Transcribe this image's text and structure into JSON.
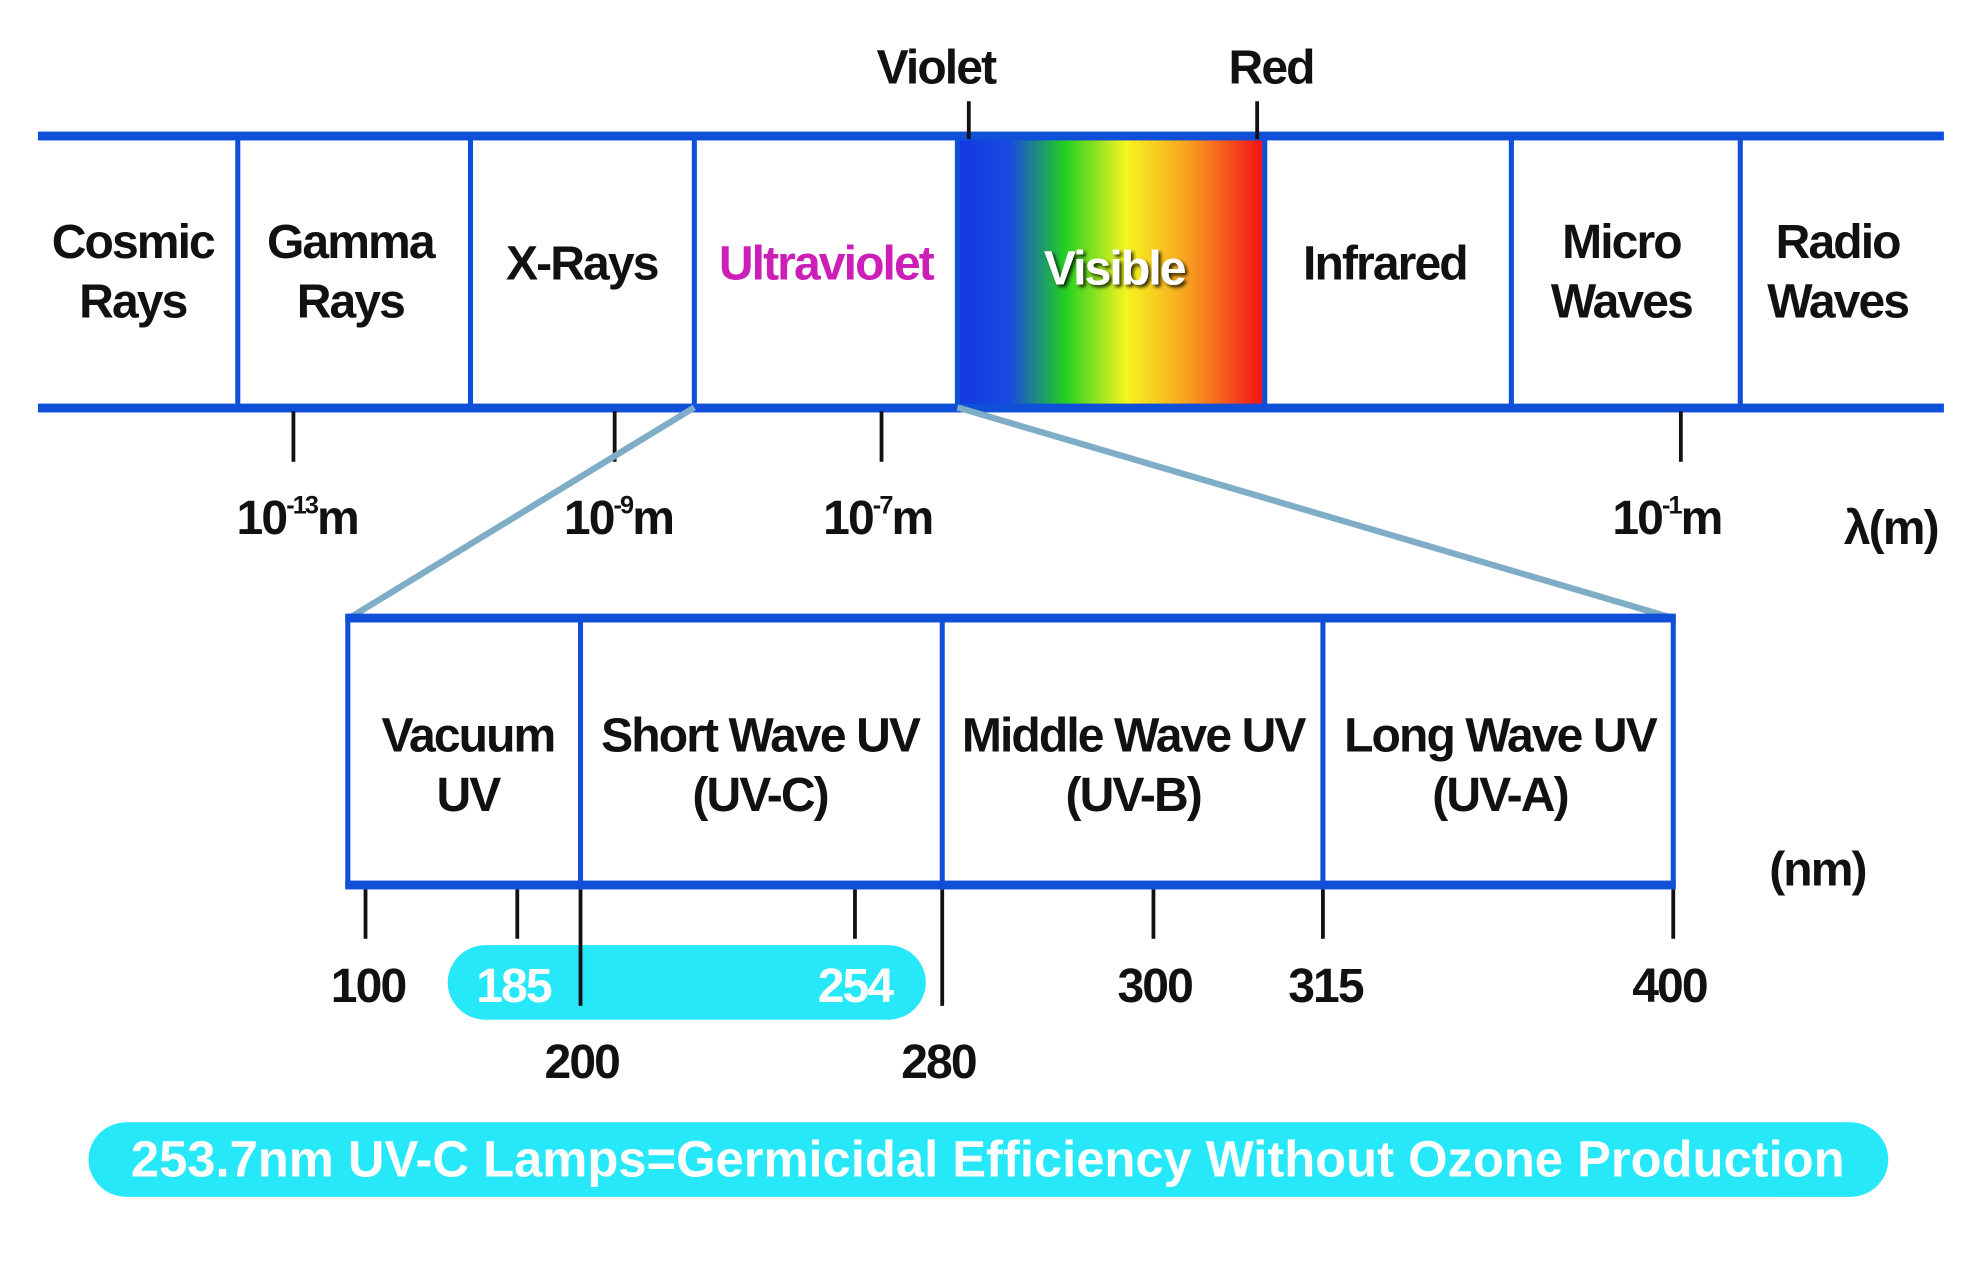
{
  "spectrum": {
    "bands": [
      {
        "line1": "Cosmic",
        "line2": "Rays"
      },
      {
        "line1": "Gamma",
        "line2": "Rays"
      },
      {
        "line1": "X-Rays"
      },
      {
        "line1": "Ultraviolet"
      },
      {
        "line1": "Visible"
      },
      {
        "line1": "Infrared"
      },
      {
        "line1": "Micro",
        "line2": "Waves"
      },
      {
        "line1": "Radio",
        "line2": "Waves"
      }
    ],
    "markers": {
      "violet": "Violet",
      "red": "Red"
    },
    "scale": [
      {
        "base": "10",
        "exp": "-13",
        "unit": "m"
      },
      {
        "base": "10",
        "exp": "-9",
        "unit": "m"
      },
      {
        "base": "10",
        "exp": "-7",
        "unit": "m"
      },
      {
        "base": "10",
        "exp": "-1",
        "unit": "m"
      }
    ],
    "axis_unit": "λ(m)"
  },
  "uv": {
    "bands": [
      {
        "line1": "Vacuum",
        "line2": "UV"
      },
      {
        "line1": "Short Wave UV",
        "line2": "(UV-C)"
      },
      {
        "line1": "Middle Wave UV",
        "line2": "(UV-B)"
      },
      {
        "line1": "Long Wave UV",
        "line2": "(UV-A)"
      }
    ],
    "unit": "(nm)",
    "ticks": [
      "100",
      "185",
      "200",
      "254",
      "280",
      "300",
      "315",
      "400"
    ],
    "highlight": [
      "185",
      "254"
    ]
  },
  "banner": "253.7nm UV-C Lamps=Germicidal Efficiency Without Ozone Production",
  "colors": {
    "line_blue": "#1050d8",
    "zoom_line": "#7fadc8",
    "ultraviolet_text": "#cc1fb8",
    "cyan": "#27e8f8"
  }
}
